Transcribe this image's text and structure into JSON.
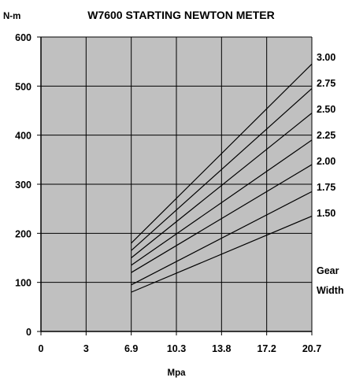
{
  "chart_data": {
    "type": "line",
    "title": "W7600 STARTING NEWTON METER",
    "ylabel": "N-m",
    "xlabel": "Mpa",
    "xlim": [
      0,
      20.7
    ],
    "ylim": [
      0,
      600
    ],
    "x_ticks": [
      "0",
      "3",
      "6.9",
      "10.3",
      "13.8",
      "17.2",
      "20.7"
    ],
    "y_ticks": [
      "0",
      "100",
      "200",
      "300",
      "400",
      "500",
      "600"
    ],
    "grid": true,
    "plot_background": "#c0c0c0",
    "line_color": "#000000",
    "legend_title": [
      "Gear",
      "Width"
    ],
    "series": [
      {
        "name": "3.00",
        "x": [
          6.9,
          20.7
        ],
        "y": [
          180,
          545
        ]
      },
      {
        "name": "2.75",
        "x": [
          6.9,
          20.7
        ],
        "y": [
          165,
          495
        ]
      },
      {
        "name": "2.50",
        "x": [
          6.9,
          20.7
        ],
        "y": [
          150,
          445
        ]
      },
      {
        "name": "2.25",
        "x": [
          6.9,
          20.7
        ],
        "y": [
          135,
          390
        ]
      },
      {
        "name": "2.00",
        "x": [
          6.9,
          20.7
        ],
        "y": [
          120,
          340
        ]
      },
      {
        "name": "1.75",
        "x": [
          6.9,
          20.7
        ],
        "y": [
          95,
          285
        ]
      },
      {
        "name": "1.50",
        "x": [
          6.9,
          20.7
        ],
        "y": [
          80,
          235
        ]
      }
    ]
  }
}
